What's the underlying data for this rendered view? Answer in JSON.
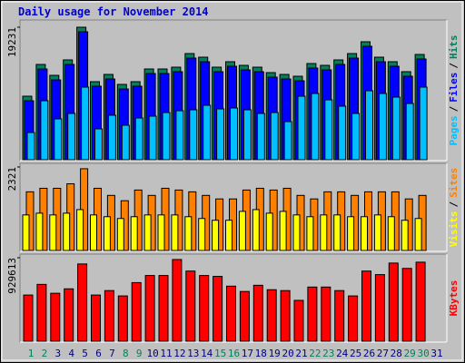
{
  "chart_data": [
    {
      "type": "bar",
      "title": "Daily usage for November 2014",
      "separator": "/",
      "ylim": [
        0,
        19231
      ],
      "yticks": [
        19231
      ],
      "series": [
        {
          "name": "Hits",
          "color": "#00805c",
          "values": [
            9219,
            13829,
            12248,
            14488,
            19231,
            11327,
            12380,
            10932,
            11327,
            13171,
            13171,
            13434,
            15410,
            14883,
            13434,
            14225,
            13698,
            13434,
            12644,
            12380,
            12117,
            13961,
            13698,
            14488,
            15410,
            17122,
            14883,
            14225,
            12776,
            15278,
            null
          ]
        },
        {
          "name": "Files",
          "color": "#0000ff",
          "values": [
            8559,
            13169,
            11588,
            13828,
            18571,
            10667,
            11720,
            10272,
            10667,
            12511,
            12511,
            12774,
            14750,
            14223,
            12774,
            13565,
            13038,
            12774,
            11984,
            11720,
            11457,
            13301,
            13038,
            13828,
            14750,
            16462,
            14223,
            13565,
            12116,
            14618,
            null
          ]
        },
        {
          "name": "Pages",
          "color": "#00c0ff",
          "values": [
            3951,
            8561,
            5927,
            6717,
            10536,
            4478,
            6453,
            5005,
            6058,
            6322,
            6848,
            7112,
            7244,
            7902,
            7375,
            7507,
            7244,
            6717,
            6848,
            5531,
            9219,
            9614,
            8692,
            7770,
            6717,
            10009,
            9614,
            9087,
            8165,
            10536,
            null
          ]
        }
      ]
    },
    {
      "type": "bar",
      "separator": "/",
      "ylim": [
        0,
        2321
      ],
      "yticks": [
        2321
      ],
      "series": [
        {
          "name": "Sites",
          "color": "#ff8000",
          "values": [
            1630,
            1729,
            1729,
            1853,
            2272,
            1729,
            1531,
            1383,
            1680,
            1531,
            1729,
            1680,
            1630,
            1531,
            1433,
            1433,
            1680,
            1729,
            1680,
            1729,
            1531,
            1433,
            1630,
            1630,
            1531,
            1630,
            1630,
            1630,
            1433,
            1531,
            null
          ]
        },
        {
          "name": "Visits",
          "color": "#ffff00",
          "values": [
            988,
            1037,
            988,
            1037,
            1136,
            988,
            939,
            889,
            939,
            988,
            988,
            988,
            939,
            889,
            840,
            840,
            1087,
            1136,
            1037,
            1087,
            988,
            939,
            988,
            988,
            939,
            939,
            988,
            939,
            840,
            889,
            null
          ]
        }
      ]
    },
    {
      "type": "bar",
      "ylim": [
        0,
        929613
      ],
      "yticks": [
        929613
      ],
      "categories": [
        "1",
        "2",
        "3",
        "4",
        "5",
        "6",
        "7",
        "8",
        "9",
        "10",
        "11",
        "12",
        "13",
        "14",
        "15",
        "16",
        "17",
        "18",
        "19",
        "20",
        "21",
        "22",
        "23",
        "24",
        "25",
        "26",
        "27",
        "28",
        "29",
        "30",
        "31"
      ],
      "weekend_categories": [
        "1",
        "2",
        "8",
        "9",
        "15",
        "16",
        "22",
        "23",
        "29",
        "30"
      ],
      "weekday_color": "#000080",
      "weekend_color": "#00805c",
      "series": [
        {
          "name": "KBytes",
          "color": "#ff0000",
          "values": [
            514228,
            632896,
            534006,
            583451,
            860343,
            514228,
            563673,
            504339,
            652674,
            731786,
            731786,
            909788,
            781231,
            731786,
            721897,
            613118,
            553784,
            623007,
            573562,
            563673,
            454894,
            603229,
            603229,
            563673,
            504339,
            781231,
            741675,
            870232,
            810898,
            880121,
            null
          ]
        }
      ]
    }
  ]
}
